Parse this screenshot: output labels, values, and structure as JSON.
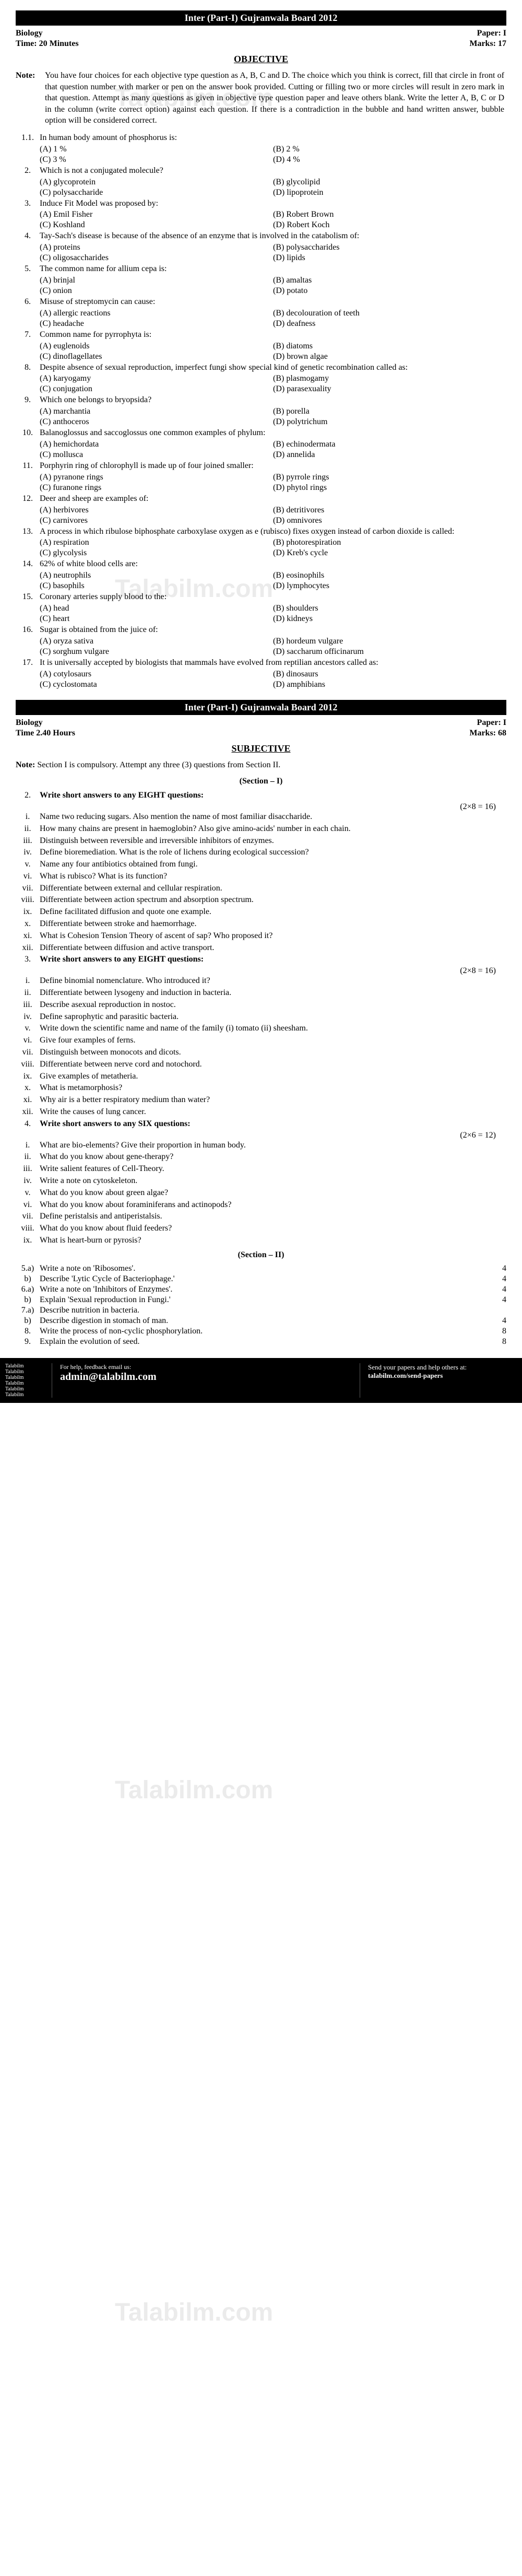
{
  "header1": {
    "board": "Inter (Part-I) Gujranwala Board 2012",
    "subject": "Biology",
    "paper": "Paper: I",
    "time": "Time: 20 Minutes",
    "marks": "Marks: 17",
    "section": "OBJECTIVE"
  },
  "note1_label": "Note:",
  "note1": "You have four choices for each objective type question as A, B, C and D. The choice which you think is correct, fill that circle in front of that question number with marker or pen on the answer book provided. Cutting or filling two or more circles will result in zero mark in that question. Attempt as many questions as given in objective type question paper and leave others blank. Write the letter A, B, C or D in the column (write correct option) against each question. If there is a contradiction in the bubble and hand written answer, bubble option will be considered correct.",
  "obj": [
    {
      "n": "1.1.",
      "t": "In human body amount of phosphorus is:",
      "o": [
        "(A) 1 %",
        "(B) 2 %",
        "(C) 3 %",
        "(D) 4 %"
      ]
    },
    {
      "n": "2.",
      "t": "Which is not a conjugated molecule?",
      "o": [
        "(A) glycoprotein",
        "(B) glycolipid",
        "(C) polysaccharide",
        "(D) lipoprotein"
      ]
    },
    {
      "n": "3.",
      "t": "Induce Fit Model was proposed by:",
      "o": [
        "(A) Emil Fisher",
        "(B) Robert Brown",
        "(C) Koshland",
        "(D) Robert Koch"
      ]
    },
    {
      "n": "4.",
      "t": "Tay-Sach's disease is because of the absence of an enzyme that is involved in the catabolism of:",
      "o": [
        "(A) proteins",
        "(B) polysaccharides",
        "(C) oligosaccharides",
        "(D) lipids"
      ]
    },
    {
      "n": "5.",
      "t": "The common name for allium cepa is:",
      "o": [
        "(A) brinjal",
        "(B) amaltas",
        "(C) onion",
        "(D) potato"
      ]
    },
    {
      "n": "6.",
      "t": "Misuse of streptomycin can cause:",
      "o": [
        "(A) allergic reactions",
        "(B) decolouration of teeth",
        "(C) headache",
        "(D) deafness"
      ]
    },
    {
      "n": "7.",
      "t": "Common name for pyrrophyta is:",
      "o": [
        "(A) euglenoids",
        "(B) diatoms",
        "(C) dinoflagellates",
        "(D) brown algae"
      ]
    },
    {
      "n": "8.",
      "t": "Despite absence of sexual reproduction, imperfect fungi show special kind of genetic recombination called as:",
      "o": [
        "(A) karyogamy",
        "(B) plasmogamy",
        "(C) conjugation",
        "(D) parasexuality"
      ]
    },
    {
      "n": "9.",
      "t": "Which one belongs to bryopsida?",
      "o": [
        "(A) marchantia",
        "(B) porella",
        "(C) anthoceros",
        "(D) polytrichum"
      ]
    },
    {
      "n": "10.",
      "t": "Balanoglossus and saccoglossus one common examples of phylum:",
      "o": [
        "(A) hemichordata",
        "(B) echinodermata",
        "(C) mollusca",
        "(D) annelida"
      ]
    },
    {
      "n": "11.",
      "t": "Porphyrin ring of chlorophyll is made up of four joined smaller:",
      "o": [
        "(A) pyranone rings",
        "(B) pyrrole rings",
        "(C) furanone rings",
        "(D) phytol rings"
      ]
    },
    {
      "n": "12.",
      "t": "Deer and sheep are examples of:",
      "o": [
        "(A) herbivores",
        "(B) detritivores",
        "(C) carnivores",
        "(D) omnivores"
      ]
    },
    {
      "n": "13.",
      "t": "A process in which ribulose biphosphate carboxylase oxygen as e (rubisco) fixes oxygen instead of carbon dioxide is called:",
      "o": [
        "(A) respiration",
        "(B) photorespiration",
        "(C) glycolysis",
        "(D) Kreb's cycle"
      ]
    },
    {
      "n": "14.",
      "t": "62% of white blood cells are:",
      "o": [
        "(A) neutrophils",
        "(B) eosinophils",
        "(C) basophils",
        "(D) lymphocytes"
      ]
    },
    {
      "n": "15.",
      "t": "Coronary arteries supply blood to the:",
      "o": [
        "(A) head",
        "(B) shoulders",
        "(C) heart",
        "(D) kidneys"
      ]
    },
    {
      "n": "16.",
      "t": "Sugar is obtained from the juice of:",
      "o": [
        "(A) oryza sativa",
        "(B) hordeum vulgare",
        "(C) sorghum vulgare",
        "(D) saccharum officinarum"
      ]
    },
    {
      "n": "17.",
      "t": "It is universally accepted by biologists that mammals have evolved from reptilian ancestors called as:",
      "o": [
        "(A) cotylosaurs",
        "(B) dinosaurs",
        "(C) cyclostomata",
        "(D) amphibians"
      ]
    }
  ],
  "header2": {
    "board": "Inter (Part-I) Gujranwala Board 2012",
    "subject": "Biology",
    "paper": "Paper: I",
    "time": "Time 2.40 Hours",
    "marks": "Marks: 68",
    "section": "SUBJECTIVE"
  },
  "note2_label": "Note:",
  "note2": "Section I is compulsory. Attempt any three (3) questions from Section II.",
  "sec1_label": "(Section – I)",
  "q2": {
    "n": "2.",
    "t": "Write short answers to any EIGHT questions:",
    "m": "(2×8 = 16)"
  },
  "q2_items": [
    {
      "r": "i.",
      "t": "Name two reducing sugars. Also mention the name of most familiar disaccharide."
    },
    {
      "r": "ii.",
      "t": "How many chains are present in haemoglobin? Also give amino-acids' number in each chain."
    },
    {
      "r": "iii.",
      "t": "Distinguish between reversible and irreversible inhibitors of enzymes."
    },
    {
      "r": "iv.",
      "t": "Define bioremediation. What is the role of lichens during ecological succession?"
    },
    {
      "r": "v.",
      "t": "Name any four antibiotics obtained from fungi."
    },
    {
      "r": "vi.",
      "t": "What is rubisco? What is its function?"
    },
    {
      "r": "vii.",
      "t": "Differentiate between external and cellular respiration."
    },
    {
      "r": "viii.",
      "t": "Differentiate between action spectrum and absorption spectrum."
    },
    {
      "r": "ix.",
      "t": "Define facilitated diffusion and quote one example."
    },
    {
      "r": "x.",
      "t": "Differentiate between stroke and haemorrhage."
    },
    {
      "r": "xi.",
      "t": "What is Cohesion Tension Theory of ascent of sap? Who proposed it?"
    },
    {
      "r": "xii.",
      "t": "Differentiate between diffusion and active transport."
    }
  ],
  "q3": {
    "n": "3.",
    "t": "Write short answers to any EIGHT questions:",
    "m": "(2×8 = 16)"
  },
  "q3_items": [
    {
      "r": "i.",
      "t": "Define binomial nomenclature. Who introduced it?"
    },
    {
      "r": "ii.",
      "t": "Differentiate between lysogeny and induction in bacteria."
    },
    {
      "r": "iii.",
      "t": "Describe asexual reproduction in nostoc."
    },
    {
      "r": "iv.",
      "t": "Define saprophytic and parasitic bacteria."
    },
    {
      "r": "v.",
      "t": "Write down the scientific name and name of the family (i) tomato (ii) sheesham."
    },
    {
      "r": "vi.",
      "t": "Give four examples of ferns."
    },
    {
      "r": "vii.",
      "t": "Distinguish between monocots and dicots."
    },
    {
      "r": "viii.",
      "t": "Differentiate between nerve cord and notochord."
    },
    {
      "r": "ix.",
      "t": "Give examples of metatheria."
    },
    {
      "r": "x.",
      "t": "What is metamorphosis?"
    },
    {
      "r": "xi.",
      "t": "Why air is a better respiratory medium than water?"
    },
    {
      "r": "xii.",
      "t": "Write the causes of lung cancer."
    }
  ],
  "q4": {
    "n": "4.",
    "t": "Write short answers to any SIX questions:",
    "m": "(2×6 = 12)"
  },
  "q4_items": [
    {
      "r": "i.",
      "t": "What are bio-elements? Give their proportion in human body."
    },
    {
      "r": "ii.",
      "t": "What do you know about gene-therapy?"
    },
    {
      "r": "iii.",
      "t": "Write salient features of Cell-Theory."
    },
    {
      "r": "iv.",
      "t": "Write a note on cytoskeleton."
    },
    {
      "r": "v.",
      "t": "What do you know about green algae?"
    },
    {
      "r": "vi.",
      "t": "What do you know about foraminiferans and actinopods?"
    },
    {
      "r": "vii.",
      "t": "Define peristalsis and antiperistalsis."
    },
    {
      "r": "viii.",
      "t": "What do you know about fluid feeders?"
    },
    {
      "r": "ix.",
      "t": "What is heart-burn or pyrosis?"
    }
  ],
  "sec2_label": "(Section – II)",
  "sec2_q": [
    {
      "n": "5.a)",
      "t": "Write a note on 'Ribosomes'.",
      "m": "4"
    },
    {
      "n": "b)",
      "t": "Describe 'Lytic Cycle of Bacteriophage.'",
      "m": "4"
    },
    {
      "n": "6.a)",
      "t": "Write a note on 'Inhibitors of Enzymes'.",
      "m": "4"
    },
    {
      "n": "b)",
      "t": "Explain 'Sexual reproduction in Fungi.'",
      "m": "4"
    },
    {
      "n": "7.a)",
      "t": "Describe nutrition in bacteria.",
      "m": ""
    },
    {
      "n": "b)",
      "t": "Describe digestion in stomach of man.",
      "m": "4"
    },
    {
      "n": "8.",
      "t": "Write the process of non-cyclic phosphorylation.",
      "m": "8"
    },
    {
      "n": "9.",
      "t": "Explain the evolution of seed.",
      "m": "8"
    }
  ],
  "footer": {
    "left_lines": [
      "Talabilm",
      "Talabilm",
      "Talabilm",
      "Talabilm",
      "Talabilm",
      "Talabilm"
    ],
    "mid_label": "For help, feedback email us:",
    "mid_email": "admin@talabilm.com",
    "right_label": "Send your papers and help others at:",
    "right_url": "talabilm.com/send-papers"
  },
  "watermarks": [
    "Talabilm.com",
    "Talabilm.com",
    "Talabilm.com",
    "Talabilm.com"
  ]
}
